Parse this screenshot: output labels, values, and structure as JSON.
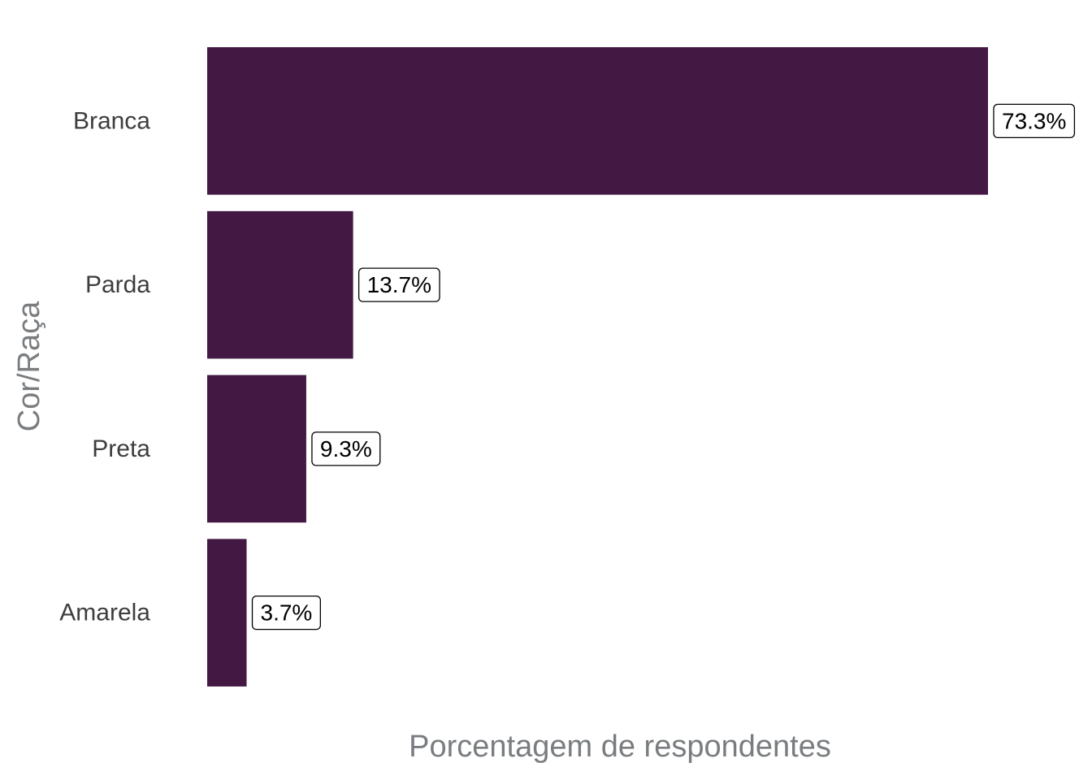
{
  "chart_data": {
    "type": "bar",
    "orientation": "horizontal",
    "categories": [
      "Branca",
      "Parda",
      "Preta",
      "Amarela"
    ],
    "values": [
      73.3,
      13.7,
      9.3,
      3.7
    ],
    "data_labels": [
      "73.3%",
      "13.7%",
      "9.3%",
      "3.7%"
    ],
    "xlabel": "Porcentagem de respondentes",
    "ylabel": "Cor/Raça",
    "xlim": [
      0,
      73.3
    ],
    "grid": false,
    "legend": "none",
    "bar_color": "#431944"
  }
}
